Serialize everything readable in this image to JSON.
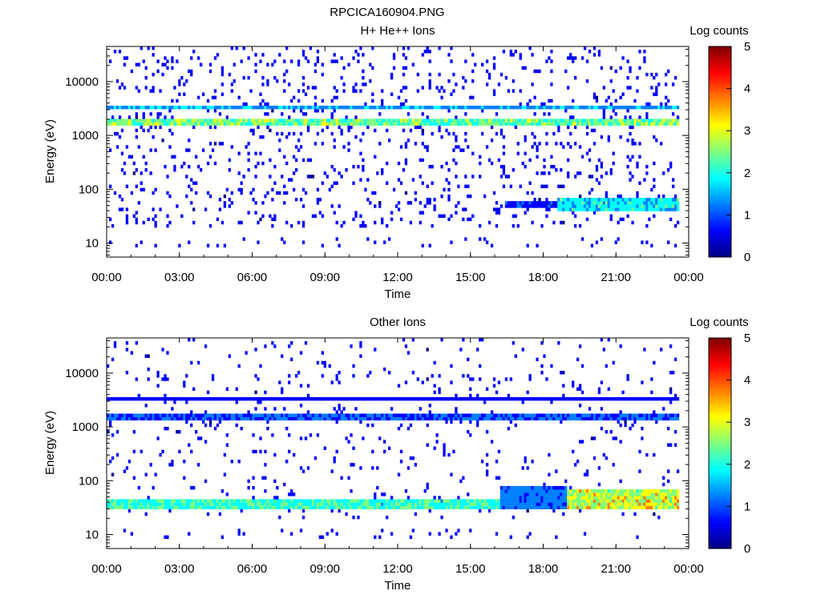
{
  "figure_title": "RPCICA160904.PNG",
  "colormap": [
    "#00007f",
    "#0000ff",
    "#007fff",
    "#00ffff",
    "#7fff7f",
    "#ffff00",
    "#ff7f00",
    "#ff0000",
    "#7f0000"
  ],
  "chart_data": [
    {
      "type": "heatmap",
      "title": "H+ He++ Ions",
      "xlabel": "Time",
      "ylabel": "Energy (eV)",
      "x_ticks": [
        "00:00",
        "03:00",
        "06:00",
        "09:00",
        "12:00",
        "15:00",
        "18:00",
        "21:00",
        "00:00"
      ],
      "xlim_hours": [
        0,
        24
      ],
      "y_scale": "log",
      "ylim": [
        5.5,
        45000
      ],
      "y_ticks": [
        "10",
        "100",
        "1000",
        "10000"
      ],
      "data_end_hour": 23.6,
      "colorbar": {
        "label": "Log counts",
        "ticks": [
          "0",
          "1",
          "2",
          "3",
          "4",
          "5"
        ],
        "range": [
          0,
          5
        ]
      },
      "bands": [
        {
          "t0": 0.0,
          "t1": 23.6,
          "e_low": 1450,
          "e_high": 1950,
          "peak_log_counts": 3.0
        },
        {
          "t0": 0.0,
          "t1": 23.6,
          "e_low": 2900,
          "e_high": 3700,
          "peak_log_counts": 1.8
        },
        {
          "t0": 16.4,
          "t1": 19.0,
          "e_low": 45,
          "e_high": 60,
          "peak_log_counts": 1.0
        },
        {
          "t0": 18.6,
          "t1": 23.6,
          "e_low": 40,
          "e_high": 65,
          "peak_log_counts": 2.3
        }
      ],
      "scatter_density": 0.08
    },
    {
      "type": "heatmap",
      "title": "Other Ions",
      "xlabel": "Time",
      "ylabel": "Energy (eV)",
      "x_ticks": [
        "00:00",
        "03:00",
        "06:00",
        "09:00",
        "12:00",
        "15:00",
        "18:00",
        "21:00",
        "00:00"
      ],
      "xlim_hours": [
        0,
        24
      ],
      "y_scale": "log",
      "ylim": [
        5.5,
        45000
      ],
      "y_ticks": [
        "10",
        "100",
        "1000",
        "10000"
      ],
      "data_end_hour": 23.6,
      "colorbar": {
        "label": "Log counts",
        "ticks": [
          "0",
          "1",
          "2",
          "3",
          "4",
          "5"
        ],
        "range": [
          0,
          5
        ]
      },
      "bands": [
        {
          "t0": 0.0,
          "t1": 23.6,
          "e_low": 1400,
          "e_high": 1750,
          "peak_log_counts": 1.2
        },
        {
          "t0": 0.0,
          "t1": 23.6,
          "e_low": 3200,
          "e_high": 3800,
          "peak_log_counts": 0.6
        },
        {
          "t0": 0.0,
          "t1": 16.2,
          "e_low": 28,
          "e_high": 48,
          "peak_log_counts": 2.6
        },
        {
          "t0": 16.2,
          "t1": 19.0,
          "e_low": 30,
          "e_high": 80,
          "peak_log_counts": 1.4
        },
        {
          "t0": 19.0,
          "t1": 23.6,
          "e_low": 30,
          "e_high": 70,
          "peak_log_counts": 3.6
        }
      ],
      "scatter_density": 0.04
    }
  ]
}
